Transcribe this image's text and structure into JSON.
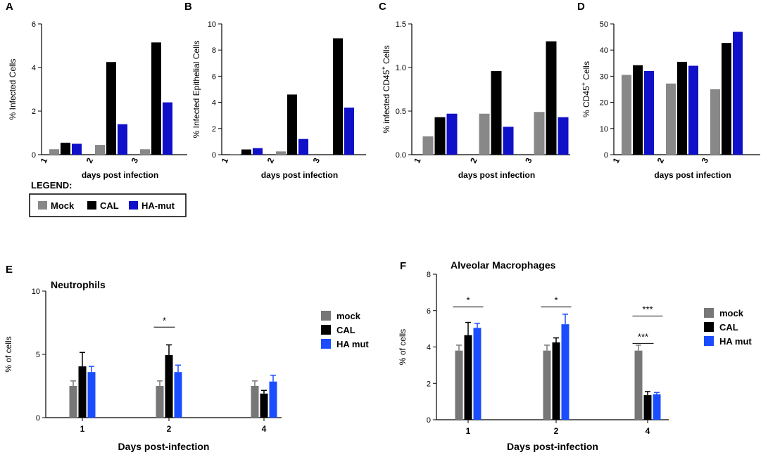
{
  "legend": {
    "title": "LEGEND:",
    "items": [
      {
        "label": "Mock",
        "color": "#888888"
      },
      {
        "label": "CAL",
        "color": "#000000"
      },
      {
        "label": "HA-mut",
        "color": "#1010c8"
      }
    ]
  },
  "chart_data": [
    {
      "id": "A",
      "type": "bar",
      "letter": "A",
      "ylabel": "% Infected Cells",
      "ylabel_sup": "",
      "ylabel_after": "",
      "xlabel": "days post infection",
      "categories": [
        "1",
        "2",
        "3"
      ],
      "ylim": [
        0,
        6
      ],
      "yticks": [
        "0",
        "2",
        "4",
        "6"
      ],
      "ytick_values": [
        0,
        2,
        4,
        6
      ],
      "series": [
        {
          "name": "Mock",
          "color": "#888888",
          "values": [
            0.25,
            0.45,
            0.25
          ]
        },
        {
          "name": "CAL",
          "color": "#000000",
          "values": [
            0.55,
            4.25,
            5.15
          ]
        },
        {
          "name": "HA-mut",
          "color": "#1010c8",
          "values": [
            0.5,
            1.4,
            2.4
          ]
        }
      ]
    },
    {
      "id": "B",
      "type": "bar",
      "letter": "B",
      "ylabel": "% Infected Epithelial Cells",
      "ylabel_sup": "",
      "ylabel_after": "",
      "xlabel": "days post infection",
      "categories": [
        "1",
        "2",
        "3"
      ],
      "ylim": [
        0,
        10
      ],
      "yticks": [
        "0",
        "2",
        "4",
        "6",
        "8",
        "10"
      ],
      "ytick_values": [
        0,
        2,
        4,
        6,
        8,
        10
      ],
      "series": [
        {
          "name": "Mock",
          "color": "#888888",
          "values": [
            0.05,
            0.25,
            0.0
          ]
        },
        {
          "name": "CAL",
          "color": "#000000",
          "values": [
            0.4,
            4.6,
            8.9
          ]
        },
        {
          "name": "HA-mut",
          "color": "#1010c8",
          "values": [
            0.5,
            1.2,
            3.6
          ]
        }
      ]
    },
    {
      "id": "C",
      "type": "bar",
      "letter": "C",
      "ylabel": "% infected CD45",
      "ylabel_sup": "+",
      "ylabel_after": " Cells",
      "xlabel": "days post infection",
      "categories": [
        "1",
        "2",
        "3"
      ],
      "ylim": [
        0,
        1.5
      ],
      "yticks": [
        "0.0",
        "0.5",
        "1.0",
        "1.5"
      ],
      "ytick_values": [
        0,
        0.5,
        1.0,
        1.5
      ],
      "series": [
        {
          "name": "Mock",
          "color": "#888888",
          "values": [
            0.21,
            0.47,
            0.49
          ]
        },
        {
          "name": "CAL",
          "color": "#000000",
          "values": [
            0.43,
            0.96,
            1.3
          ]
        },
        {
          "name": "HA-mut",
          "color": "#1010c8",
          "values": [
            0.47,
            0.32,
            0.43
          ]
        }
      ]
    },
    {
      "id": "D",
      "type": "bar",
      "letter": "D",
      "ylabel": "% CD45",
      "ylabel_sup": "+",
      "ylabel_after": " Cells",
      "xlabel": "days post infection",
      "categories": [
        "1",
        "2",
        "3"
      ],
      "ylim": [
        0,
        50
      ],
      "yticks": [
        "0",
        "10",
        "20",
        "30",
        "40",
        "50"
      ],
      "ytick_values": [
        0,
        10,
        20,
        30,
        40,
        50
      ],
      "series": [
        {
          "name": "Mock",
          "color": "#888888",
          "values": [
            30.5,
            27.2,
            25.0
          ]
        },
        {
          "name": "CAL",
          "color": "#000000",
          "values": [
            34.2,
            35.5,
            42.7
          ]
        },
        {
          "name": "HA-mut",
          "color": "#1010c8",
          "values": [
            32.0,
            34.0,
            47.0
          ]
        }
      ]
    },
    {
      "id": "E",
      "type": "bar",
      "letter": "E",
      "title": "Neutrophils",
      "ylabel": "% of cells",
      "xlabel": "Days post-infection",
      "categories": [
        "1",
        "2",
        "4"
      ],
      "ylim": [
        0,
        10
      ],
      "yticks": [
        "0",
        "5",
        "10"
      ],
      "ytick_values": [
        0,
        5,
        10
      ],
      "legend": [
        "mock",
        "CAL",
        "HA mut"
      ],
      "series": [
        {
          "name": "mock",
          "color": "#777777",
          "values": [
            2.5,
            2.5,
            2.5
          ],
          "errors": [
            0.4,
            0.4,
            0.4
          ]
        },
        {
          "name": "CAL",
          "color": "#000000",
          "values": [
            4.05,
            4.95,
            1.9
          ],
          "errors": [
            1.1,
            0.8,
            0.25
          ]
        },
        {
          "name": "HA mut",
          "color": "#1a4dff",
          "values": [
            3.6,
            3.6,
            2.85
          ],
          "errors": [
            0.45,
            0.55,
            0.5
          ]
        }
      ],
      "annotations": [
        {
          "text": "*",
          "category": 1,
          "from": 0,
          "to": 1,
          "y": 7.15
        }
      ]
    },
    {
      "id": "F",
      "type": "bar",
      "letter": "F",
      "title": "Alveolar Macrophages",
      "ylabel": "% of cells",
      "xlabel": "Days post-infection",
      "categories": [
        "1",
        "2",
        "4"
      ],
      "ylim": [
        0,
        8
      ],
      "yticks": [
        "0",
        "2",
        "4",
        "6",
        "8"
      ],
      "ytick_values": [
        0,
        2,
        4,
        6,
        8
      ],
      "legend": [
        "mock",
        "CAL",
        "HA mut"
      ],
      "series": [
        {
          "name": "mock",
          "color": "#777777",
          "values": [
            3.8,
            3.8,
            3.8
          ],
          "errors": [
            0.3,
            0.3,
            0.3
          ]
        },
        {
          "name": "CAL",
          "color": "#000000",
          "values": [
            4.65,
            4.25,
            1.35
          ],
          "errors": [
            0.7,
            0.25,
            0.2
          ]
        },
        {
          "name": "HA mut",
          "color": "#1a4dff",
          "values": [
            5.05,
            5.25,
            1.4
          ],
          "errors": [
            0.25,
            0.55,
            0.1
          ]
        }
      ],
      "annotations": [
        {
          "text": "*",
          "category": 0,
          "from": 0,
          "to": 2,
          "y": 6.2
        },
        {
          "text": "*",
          "category": 1,
          "from": 0,
          "to": 2,
          "y": 6.2
        },
        {
          "text": "***",
          "category": 2,
          "from": 0,
          "to": 2,
          "y": 5.7
        },
        {
          "text": "***",
          "category": 2,
          "from": 0,
          "to": 1,
          "y": 4.2
        }
      ]
    }
  ]
}
